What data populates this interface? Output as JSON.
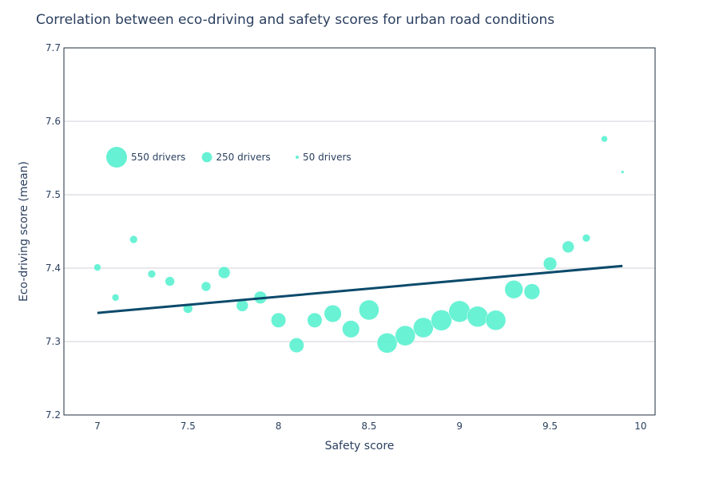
{
  "chart_data": {
    "type": "scatter",
    "title": "Correlation between eco-driving and safety scores for urban road conditions",
    "xlabel": "Safety score",
    "ylabel": "Eco-driving score (mean)",
    "xlim": [
      6.815,
      10.08
    ],
    "ylim": [
      7.2,
      7.7
    ],
    "xticks": [
      7,
      7.5,
      8,
      8.5,
      9,
      9.5,
      10
    ],
    "xtick_labels": [
      "7",
      "7.5",
      "8",
      "8.5",
      "9",
      "9.5",
      "10"
    ],
    "yticks": [
      7.2,
      7.3,
      7.4,
      7.5,
      7.6,
      7.7
    ],
    "ytick_labels": [
      "7.2",
      "7.3",
      "7.4",
      "7.5",
      "7.6",
      "7.7"
    ],
    "grid": "horizontal",
    "marker_color": "#55f0cf",
    "trend_color": "#0b4a6b",
    "size_legend": [
      {
        "value": 550,
        "label": "550 drivers"
      },
      {
        "value": 250,
        "label": "250 drivers"
      },
      {
        "value": 50,
        "label": "50 drivers"
      }
    ],
    "legend_placement": "top-left",
    "points": [
      {
        "x": 7.0,
        "y": 7.401,
        "drivers": 160
      },
      {
        "x": 7.1,
        "y": 7.36,
        "drivers": 160
      },
      {
        "x": 7.2,
        "y": 7.439,
        "drivers": 180
      },
      {
        "x": 7.3,
        "y": 7.392,
        "drivers": 180
      },
      {
        "x": 7.4,
        "y": 7.382,
        "drivers": 230
      },
      {
        "x": 7.5,
        "y": 7.345,
        "drivers": 230
      },
      {
        "x": 7.6,
        "y": 7.375,
        "drivers": 230
      },
      {
        "x": 7.7,
        "y": 7.394,
        "drivers": 300
      },
      {
        "x": 7.8,
        "y": 7.349,
        "drivers": 300
      },
      {
        "x": 7.9,
        "y": 7.36,
        "drivers": 320
      },
      {
        "x": 8.0,
        "y": 7.329,
        "drivers": 380
      },
      {
        "x": 8.1,
        "y": 7.295,
        "drivers": 380
      },
      {
        "x": 8.2,
        "y": 7.329,
        "drivers": 380
      },
      {
        "x": 8.3,
        "y": 7.338,
        "drivers": 450
      },
      {
        "x": 8.4,
        "y": 7.317,
        "drivers": 450
      },
      {
        "x": 8.5,
        "y": 7.343,
        "drivers": 530
      },
      {
        "x": 8.6,
        "y": 7.298,
        "drivers": 530
      },
      {
        "x": 8.7,
        "y": 7.308,
        "drivers": 530
      },
      {
        "x": 8.8,
        "y": 7.319,
        "drivers": 530
      },
      {
        "x": 8.9,
        "y": 7.329,
        "drivers": 550
      },
      {
        "x": 9.0,
        "y": 7.341,
        "drivers": 570
      },
      {
        "x": 9.1,
        "y": 7.334,
        "drivers": 550
      },
      {
        "x": 9.2,
        "y": 7.329,
        "drivers": 530
      },
      {
        "x": 9.3,
        "y": 7.371,
        "drivers": 480
      },
      {
        "x": 9.4,
        "y": 7.368,
        "drivers": 410
      },
      {
        "x": 9.5,
        "y": 7.406,
        "drivers": 340
      },
      {
        "x": 9.6,
        "y": 7.429,
        "drivers": 300
      },
      {
        "x": 9.7,
        "y": 7.441,
        "drivers": 180
      },
      {
        "x": 9.8,
        "y": 7.576,
        "drivers": 140
      },
      {
        "x": 9.9,
        "y": 7.531,
        "drivers": 50
      }
    ],
    "trend": [
      {
        "x": 7.0,
        "y": 7.339
      },
      {
        "x": 9.9,
        "y": 7.403
      }
    ]
  }
}
